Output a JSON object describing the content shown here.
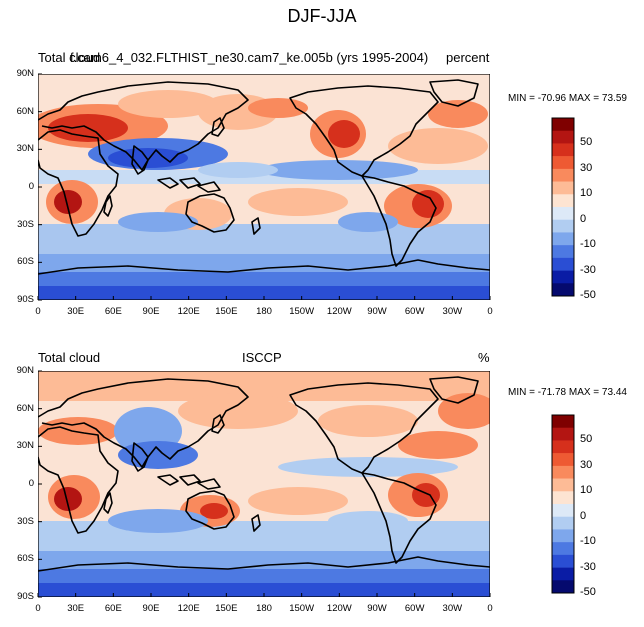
{
  "title": "DJF-JJA",
  "panels": [
    {
      "left_label": "Total cloud",
      "center_label": "f.cam6_4_032.FLTHIST_ne30.cam7_ke.005b (yrs 1995-2004)",
      "right_label": "percent",
      "minmax": "MIN = -70.96 MAX =  73.59"
    },
    {
      "left_label": "Total cloud",
      "center_label": "ISCCP",
      "right_label": "%",
      "minmax": "MIN = -71.78 MAX =  73.44"
    }
  ],
  "lat_ticks": [
    "90N",
    "60N",
    "30N",
    "0",
    "30S",
    "60S",
    "90S"
  ],
  "lon_ticks": [
    "0",
    "30E",
    "60E",
    "90E",
    "120E",
    "150E",
    "180",
    "150W",
    "120W",
    "90W",
    "60W",
    "30W",
    "0"
  ],
  "colorbar_labels": [
    "50",
    "30",
    "10",
    "0",
    "-10",
    "-30",
    "-50"
  ],
  "colorbar_colors": [
    "#7f0000",
    "#b31512",
    "#d6301c",
    "#ee5a33",
    "#f98a5d",
    "#fdbb96",
    "#fde4d2",
    "#dde9f7",
    "#b1cdf1",
    "#7ea7ec",
    "#4d79e2",
    "#2a4ed4",
    "#0a1ca5",
    "#050a6e"
  ]
}
